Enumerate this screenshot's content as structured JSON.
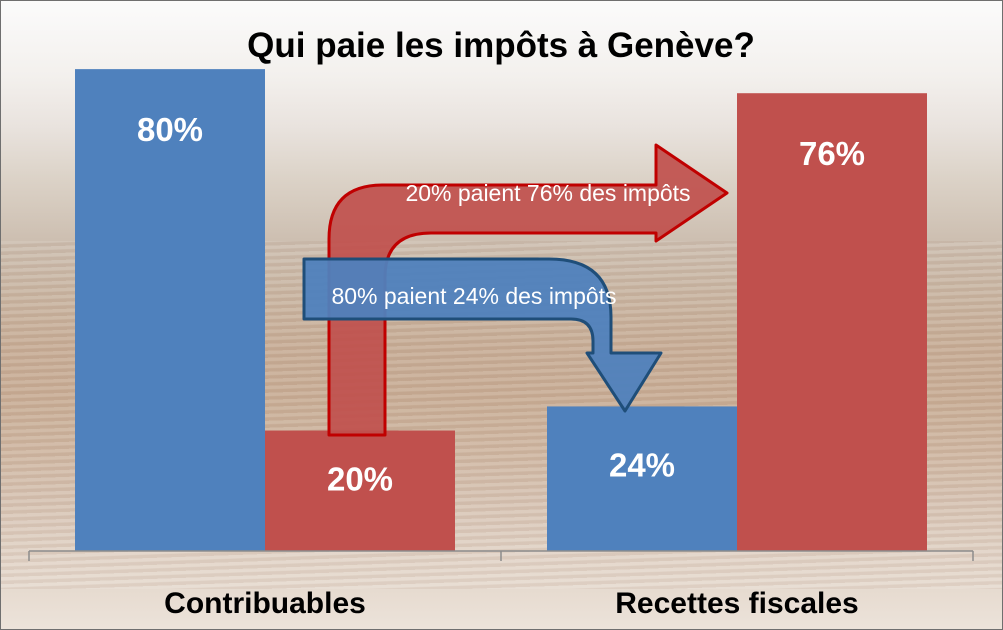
{
  "chart_data": {
    "type": "bar",
    "title": "Qui paie les impôts à Genève?",
    "categories": [
      "Contribuables",
      "Recettes fiscales"
    ],
    "ylim": [
      0,
      85
    ],
    "grid": false,
    "series": [
      {
        "values": [
          80,
          24
        ],
        "labels": [
          "80%",
          "24%"
        ],
        "color": "#4f81bd"
      },
      {
        "values": [
          20,
          76
        ],
        "labels": [
          "20%",
          "76%"
        ],
        "color": "#c0504d"
      }
    ],
    "annotations": [
      {
        "text": "20% paient 76% des impôts",
        "color": "#c0504d"
      },
      {
        "text": "80% paient 24% des impôts",
        "color": "#4f81bd"
      }
    ]
  }
}
